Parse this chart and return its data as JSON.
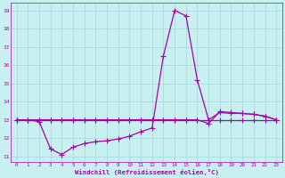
{
  "xlabel": "Windchill (Refroidissement éolien,°C)",
  "xlim": [
    -0.5,
    23.5
  ],
  "ylim": [
    10.7,
    19.4
  ],
  "yticks": [
    11,
    12,
    13,
    14,
    15,
    16,
    17,
    18,
    19
  ],
  "xticks": [
    0,
    1,
    2,
    3,
    4,
    5,
    6,
    7,
    8,
    9,
    10,
    11,
    12,
    13,
    14,
    15,
    16,
    17,
    18,
    19,
    20,
    21,
    22,
    23
  ],
  "background_color": "#c8f0f0",
  "grid_color": "#a0d8d8",
  "line_color": "#aa00aa",
  "line_width": 0.9,
  "marker": "+",
  "marker_size": 4,
  "series": {
    "line1": [
      13.0,
      13.0,
      12.9,
      11.4,
      11.1,
      11.5,
      11.7,
      11.8,
      11.85,
      11.95,
      12.1,
      12.35,
      12.55,
      16.5,
      19.0,
      18.7,
      15.2,
      13.0,
      13.4,
      13.35,
      13.35,
      13.3,
      13.2,
      13.0
    ],
    "line2": [
      13.0,
      13.0,
      13.0,
      13.0,
      13.0,
      13.0,
      13.0,
      13.0,
      13.0,
      13.0,
      13.0,
      13.0,
      13.0,
      13.0,
      13.0,
      13.0,
      13.0,
      12.8,
      13.45,
      13.4,
      13.35,
      13.3,
      13.2,
      13.0
    ],
    "line3": [
      13.0,
      13.0,
      13.0,
      13.0,
      13.0,
      13.0,
      13.0,
      13.0,
      13.0,
      13.0,
      13.0,
      13.0,
      13.0,
      13.0,
      13.0,
      13.0,
      13.0,
      13.0,
      13.0,
      13.0,
      13.0,
      13.0,
      13.0,
      13.0
    ]
  }
}
